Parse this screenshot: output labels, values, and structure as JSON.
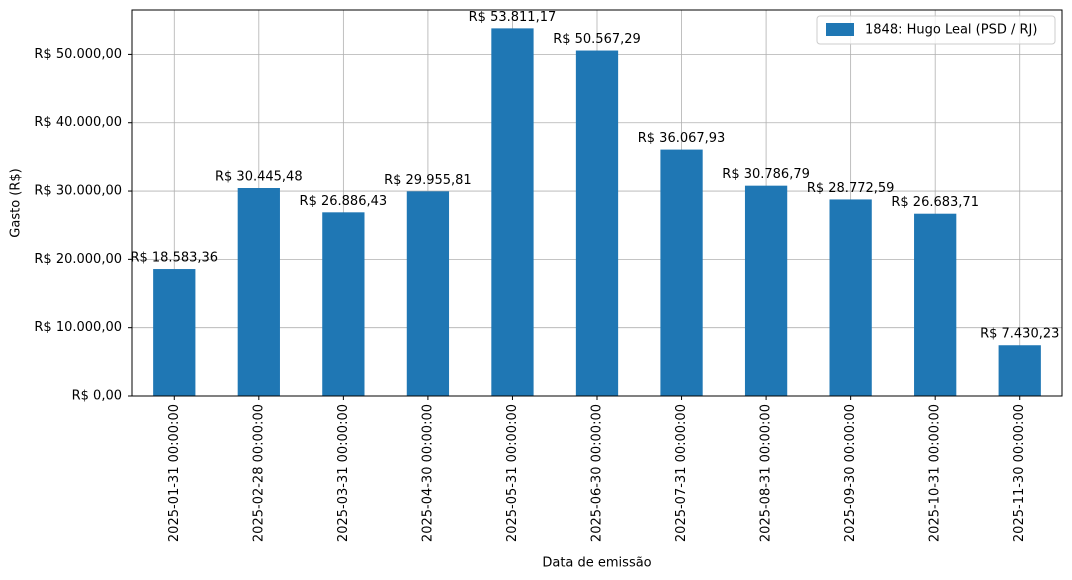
{
  "chart_data": {
    "type": "bar",
    "xlabel": "Data de emissão",
    "ylabel": "Gasto (R$)",
    "categories": [
      "2025-01-31 00:00:00",
      "2025-02-28 00:00:00",
      "2025-03-31 00:00:00",
      "2025-04-30 00:00:00",
      "2025-05-31 00:00:00",
      "2025-06-30 00:00:00",
      "2025-07-31 00:00:00",
      "2025-08-31 00:00:00",
      "2025-09-30 00:00:00",
      "2025-10-31 00:00:00",
      "2025-11-30 00:00:00"
    ],
    "series": [
      {
        "name": "1848: Hugo Leal (PSD / RJ)",
        "color": "#1f77b4",
        "values": [
          18583.36,
          30445.48,
          26886.43,
          29955.81,
          53811.17,
          50567.29,
          36067.93,
          30786.79,
          28772.59,
          26683.71,
          7430.23
        ],
        "value_labels": [
          "R$ 18.583,36",
          "R$ 30.445,48",
          "R$ 26.886,43",
          "R$ 29.955,81",
          "R$ 53.811,17",
          "R$ 50.567,29",
          "R$ 36.067,93",
          "R$ 30.786,79",
          "R$ 28.772,59",
          "R$ 26.683,71",
          "R$ 7.430,23"
        ]
      }
    ],
    "ylim": [
      0,
      56500
    ],
    "yticks": [
      {
        "value": 0,
        "label": "R$ 0,00"
      },
      {
        "value": 10000,
        "label": "R$ 10.000,00"
      },
      {
        "value": 20000,
        "label": "R$ 20.000,00"
      },
      {
        "value": 30000,
        "label": "R$ 30.000,00"
      },
      {
        "value": 40000,
        "label": "R$ 40.000,00"
      },
      {
        "value": 50000,
        "label": "R$ 50.000,00"
      }
    ],
    "grid": true,
    "legend": "upper right"
  }
}
